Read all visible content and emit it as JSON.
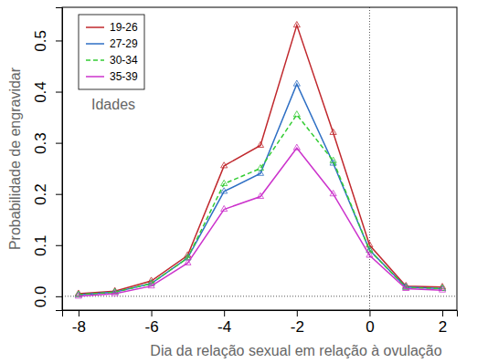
{
  "chart_data": {
    "type": "line",
    "x_label": "Dia da relação sexual em relação à ovulação",
    "y_label": "Probabilidade de engravidar",
    "legend_title": "Idades",
    "legend": "upper left",
    "marker": "triangle",
    "x": [
      -8,
      -7,
      -6,
      -5,
      -4,
      -3,
      -2,
      -1,
      0,
      1,
      2
    ],
    "series": [
      {
        "name": "19-26",
        "color": "#c0282d",
        "line_style": "solid",
        "values": [
          0.005,
          0.01,
          0.03,
          0.08,
          0.255,
          0.295,
          0.53,
          0.32,
          0.1,
          0.02,
          0.018
        ]
      },
      {
        "name": "27-29",
        "color": "#2e6fc4",
        "line_style": "solid",
        "values": [
          0.003,
          0.008,
          0.025,
          0.075,
          0.205,
          0.24,
          0.415,
          0.26,
          0.09,
          0.018,
          0.015
        ]
      },
      {
        "name": "30-34",
        "color": "#33cc33",
        "line_style": "dashed",
        "values": [
          0.003,
          0.008,
          0.025,
          0.075,
          0.22,
          0.25,
          0.355,
          0.265,
          0.09,
          0.017,
          0.015
        ]
      },
      {
        "name": "35-39",
        "color": "#cc33cc",
        "line_style": "solid",
        "values": [
          0.0,
          0.005,
          0.02,
          0.065,
          0.17,
          0.195,
          0.29,
          0.2,
          0.08,
          0.015,
          0.012
        ]
      }
    ],
    "reference_lines": {
      "x": [
        0
      ],
      "y": [
        0
      ]
    },
    "xlim": [
      -8.45,
      2.4
    ],
    "ylim": [
      -0.027,
      0.565
    ],
    "xticks": [
      -8,
      -6,
      -4,
      -2,
      0,
      2
    ],
    "yticks": [
      {
        "value": 0,
        "label": "0.0"
      },
      0.1,
      0.2,
      0.3,
      0.4,
      0.5
    ],
    "grid": false
  }
}
